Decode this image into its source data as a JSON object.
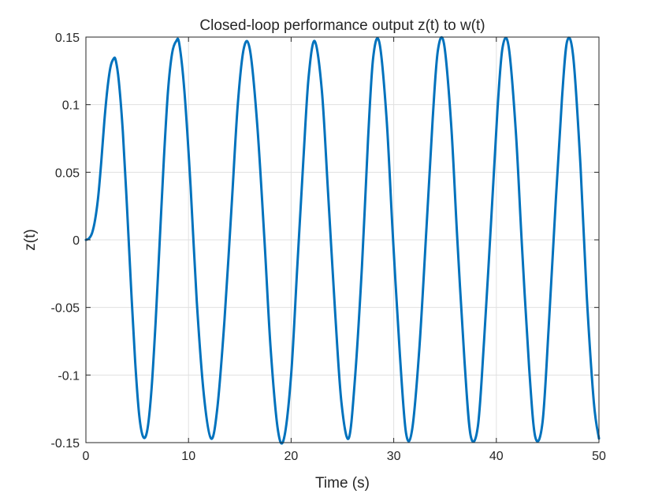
{
  "chart_data": {
    "type": "line",
    "title": "Closed-loop performance output z(t) to w(t)",
    "xlabel": "Time (s)",
    "ylabel": "z(t)",
    "xlim": [
      0,
      50
    ],
    "ylim": [
      -0.15,
      0.15
    ],
    "grid": true,
    "xticks": [
      0,
      10,
      20,
      30,
      40,
      50
    ],
    "xtick_labels": [
      "0",
      "10",
      "20",
      "30",
      "40",
      "50"
    ],
    "yticks": [
      -0.15,
      -0.1,
      -0.05,
      0,
      0.05,
      0.1,
      0.15
    ],
    "ytick_labels": [
      "-0.15",
      "-0.1",
      "-0.05",
      "0",
      "0.05",
      "0.1",
      "0.15"
    ],
    "line_color": "#0072BD",
    "series": [
      {
        "x": [
          0,
          0.3,
          0.6,
          0.9,
          1.2,
          1.5,
          1.8,
          2.1,
          2.4,
          2.7,
          2.9,
          3.2,
          3.6,
          4.0,
          4.4,
          4.8,
          5.2,
          5.6,
          6.0,
          6.4,
          6.8,
          7.2,
          7.6,
          8.0,
          8.4,
          8.8,
          9.1,
          9.6,
          10.2,
          10.8,
          11.5,
          12.2,
          12.8,
          13.5,
          14.2,
          14.8,
          15.4,
          16.0,
          16.7,
          17.4,
          18.0,
          18.7,
          19.3,
          20.0,
          20.6,
          21.2,
          21.7,
          22.3,
          23.0,
          23.6,
          24.3,
          24.9,
          25.6,
          26.2,
          26.9,
          27.5,
          28.0,
          28.6,
          29.3,
          29.9,
          30.6,
          31.2,
          31.8,
          32.5,
          33.2,
          33.8,
          34.3,
          34.9,
          35.6,
          36.2,
          36.9,
          37.5,
          38.2,
          38.8,
          39.5,
          40.1,
          40.6,
          41.2,
          41.9,
          42.5,
          43.2,
          43.8,
          44.5,
          45.1,
          45.8,
          46.4,
          46.9,
          47.5,
          48.2,
          48.8,
          49.5,
          50.0
        ],
        "y": [
          0,
          0.001,
          0.005,
          0.015,
          0.032,
          0.058,
          0.088,
          0.112,
          0.128,
          0.134,
          0.133,
          0.118,
          0.08,
          0.025,
          -0.035,
          -0.09,
          -0.13,
          -0.146,
          -0.14,
          -0.11,
          -0.06,
          0.0,
          0.06,
          0.11,
          0.138,
          0.147,
          0.145,
          0.11,
          0.04,
          -0.045,
          -0.115,
          -0.147,
          -0.125,
          -0.06,
          0.025,
          0.1,
          0.142,
          0.14,
          0.085,
          0.0,
          -0.08,
          -0.14,
          -0.147,
          -0.1,
          -0.02,
          0.06,
          0.12,
          0.147,
          0.11,
          0.035,
          -0.055,
          -0.12,
          -0.147,
          -0.105,
          -0.02,
          0.075,
          0.135,
          0.146,
          0.09,
          0.005,
          -0.085,
          -0.143,
          -0.14,
          -0.08,
          0.01,
          0.09,
          0.14,
          0.145,
          0.085,
          0.0,
          -0.09,
          -0.145,
          -0.138,
          -0.075,
          0.015,
          0.095,
          0.142,
          0.143,
          0.08,
          -0.005,
          -0.095,
          -0.146,
          -0.135,
          -0.065,
          0.03,
          0.105,
          0.147,
          0.135,
          0.055,
          -0.04,
          -0.12,
          -0.147
        ]
      }
    ]
  }
}
